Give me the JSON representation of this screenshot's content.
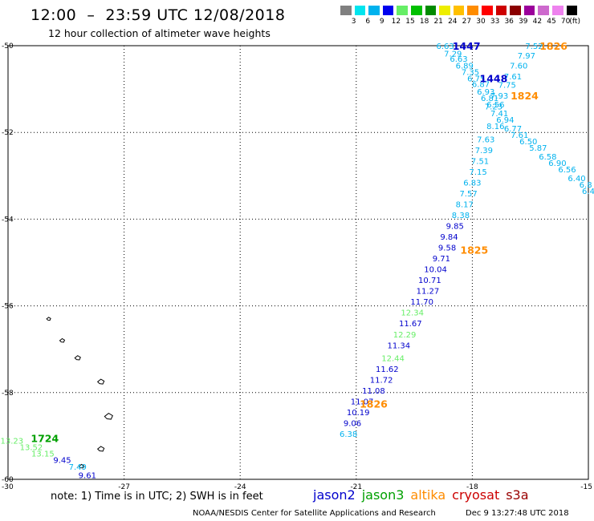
{
  "header": {
    "title": "12:00  –  23:59 UTC 12/08/2018",
    "subtitle": "12 hour collection of altimeter wave heights"
  },
  "colorbar": {
    "unit_label": "(ft)",
    "entries": [
      {
        "label": "3",
        "color": "#808080"
      },
      {
        "label": "6",
        "color": "#00e5ee"
      },
      {
        "label": "9",
        "color": "#00b2ee"
      },
      {
        "label": "12",
        "color": "#0000ee"
      },
      {
        "label": "15",
        "color": "#66ee66"
      },
      {
        "label": "18",
        "color": "#00c000"
      },
      {
        "label": "21",
        "color": "#008b00"
      },
      {
        "label": "24",
        "color": "#eeee00"
      },
      {
        "label": "27",
        "color": "#ffc000"
      },
      {
        "label": "30",
        "color": "#ff8c00"
      },
      {
        "label": "33",
        "color": "#ff0000"
      },
      {
        "label": "36",
        "color": "#cd0000"
      },
      {
        "label": "39",
        "color": "#8b0000"
      },
      {
        "label": "42",
        "color": "#9b009b"
      },
      {
        "label": "45",
        "color": "#cd69cd"
      },
      {
        "label": "70",
        "color": "#ee82ee"
      },
      {
        "label": "",
        "color": "#000000"
      }
    ]
  },
  "axes": {
    "lat_labels": [
      "-50",
      "-52",
      "-54",
      "-56",
      "-58",
      "-60"
    ],
    "lon_labels": [
      "-30",
      "-27",
      "-24",
      "-21",
      "-18",
      "-15"
    ]
  },
  "footer": {
    "note": "note:  1) Time is in UTC;  2) SWH is in feet",
    "satellites": [
      {
        "name": "jason2",
        "color": "#0000cc"
      },
      {
        "name": "jason3",
        "color": "#00a000"
      },
      {
        "name": "altika",
        "color": "#ff8c00"
      },
      {
        "name": "cryosat",
        "color": "#cc0000"
      },
      {
        "name": "s3a",
        "color": "#990000"
      }
    ],
    "credit": "NOAA/NESDIS Center for Satellite Applications and Research",
    "timestamp": "Dec  9 13:27:48 UTC 2018"
  },
  "map_data": {
    "lat_range": [
      -60,
      -50
    ],
    "lon_range": [
      -30,
      -15
    ],
    "colors": {
      "s6": "#00b2ee",
      "s9": "#0000cc",
      "s12": "#66ee66",
      "s15": "#00a000",
      "alt": "#ff8c00",
      "time_j2": "#0000cc",
      "time_j3": "#00a000"
    },
    "observations": [
      {
        "t": "6.63",
        "c": "s6",
        "lon": -18.7,
        "lat": -50.0
      },
      {
        "t": "7.29",
        "c": "s6",
        "lon": -18.5,
        "lat": -50.18
      },
      {
        "t": "6.63",
        "c": "s6",
        "lon": -18.35,
        "lat": -50.3
      },
      {
        "t": "6.89",
        "c": "s6",
        "lon": -18.2,
        "lat": -50.45
      },
      {
        "t": "7.35",
        "c": "s6",
        "lon": -18.05,
        "lat": -50.6
      },
      {
        "t": "6.75",
        "c": "s6",
        "lon": -17.9,
        "lat": -50.75
      },
      {
        "t": "6.87",
        "c": "s6",
        "lon": -17.78,
        "lat": -50.88
      },
      {
        "t": "6.93",
        "c": "s6",
        "lon": -17.65,
        "lat": -51.05
      },
      {
        "t": "6.81",
        "c": "s6",
        "lon": -17.55,
        "lat": -51.2
      },
      {
        "t": "6.56",
        "c": "s6",
        "lon": -17.4,
        "lat": -51.35
      },
      {
        "t": "7.41",
        "c": "s6",
        "lon": -17.3,
        "lat": -51.55
      },
      {
        "t": "6.94",
        "c": "s6",
        "lon": -17.15,
        "lat": -51.7
      },
      {
        "t": "8.16",
        "c": "s6",
        "lon": -17.4,
        "lat": -51.85
      },
      {
        "t": "6.77",
        "c": "s6",
        "lon": -16.95,
        "lat": -51.9
      },
      {
        "t": "7.61",
        "c": "s6",
        "lon": -16.78,
        "lat": -52.05
      },
      {
        "t": "6.50",
        "c": "s6",
        "lon": -16.55,
        "lat": -52.2
      },
      {
        "t": "5.87",
        "c": "s6",
        "lon": -16.3,
        "lat": -52.35
      },
      {
        "t": "6.58",
        "c": "s6",
        "lon": -16.05,
        "lat": -52.55
      },
      {
        "t": "6.90",
        "c": "s6",
        "lon": -15.8,
        "lat": -52.7
      },
      {
        "t": "6.56",
        "c": "s6",
        "lon": -15.55,
        "lat": -52.85
      },
      {
        "t": "6.40",
        "c": "s6",
        "lon": -15.3,
        "lat": -53.05
      },
      {
        "t": "6.8",
        "c": "s6",
        "lon": -15.07,
        "lat": -53.2
      },
      {
        "t": "6.4",
        "c": "s6",
        "lon": -15.0,
        "lat": -53.35
      },
      {
        "t": "7.52",
        "c": "s6",
        "lon": -16.4,
        "lat": -50.0
      },
      {
        "t": "7.97",
        "c": "s6",
        "lon": -16.6,
        "lat": -50.22
      },
      {
        "t": "7.60",
        "c": "s6",
        "lon": -16.8,
        "lat": -50.45
      },
      {
        "t": "7.61",
        "c": "s6",
        "lon": -16.95,
        "lat": -50.7
      },
      {
        "t": "7.75",
        "c": "s6",
        "lon": -17.1,
        "lat": -50.9
      },
      {
        "t": "7.93",
        "c": "s6",
        "lon": -17.3,
        "lat": -51.15
      },
      {
        "t": "7.23",
        "c": "s6",
        "lon": -17.45,
        "lat": -51.4
      },
      {
        "t": "7.63",
        "c": "s6",
        "lon": -17.65,
        "lat": -52.15
      },
      {
        "t": "7.39",
        "c": "s6",
        "lon": -17.7,
        "lat": -52.4
      },
      {
        "t": "7.51",
        "c": "s6",
        "lon": -17.8,
        "lat": -52.65
      },
      {
        "t": "7.15",
        "c": "s6",
        "lon": -17.85,
        "lat": -52.9
      },
      {
        "t": "6.83",
        "c": "s6",
        "lon": -18.0,
        "lat": -53.15
      },
      {
        "t": "7.57",
        "c": "s6",
        "lon": -18.1,
        "lat": -53.4
      },
      {
        "t": "8.17",
        "c": "s6",
        "lon": -18.2,
        "lat": -53.65
      },
      {
        "t": "8.38",
        "c": "s6",
        "lon": -18.3,
        "lat": -53.9
      },
      {
        "t": "9.85",
        "c": "s9",
        "lon": -18.45,
        "lat": -54.15
      },
      {
        "t": "9.84",
        "c": "s9",
        "lon": -18.6,
        "lat": -54.4
      },
      {
        "t": "9.58",
        "c": "s9",
        "lon": -18.65,
        "lat": -54.65
      },
      {
        "t": "9.71",
        "c": "s9",
        "lon": -18.8,
        "lat": -54.9
      },
      {
        "t": "10.04",
        "c": "s9",
        "lon": -18.95,
        "lat": -55.15
      },
      {
        "t": "10.71",
        "c": "s9",
        "lon": -19.1,
        "lat": -55.4
      },
      {
        "t": "11.27",
        "c": "s9",
        "lon": -19.15,
        "lat": -55.65
      },
      {
        "t": "11.70",
        "c": "s9",
        "lon": -19.3,
        "lat": -55.9
      },
      {
        "t": "12.34",
        "c": "s12",
        "lon": -19.55,
        "lat": -56.15
      },
      {
        "t": "11.67",
        "c": "s9",
        "lon": -19.6,
        "lat": -56.4
      },
      {
        "t": "12.29",
        "c": "s12",
        "lon": -19.75,
        "lat": -56.65
      },
      {
        "t": "11.34",
        "c": "s9",
        "lon": -19.9,
        "lat": -56.9
      },
      {
        "t": "12.44",
        "c": "s12",
        "lon": -20.05,
        "lat": -57.2
      },
      {
        "t": "11.62",
        "c": "s9",
        "lon": -20.2,
        "lat": -57.45
      },
      {
        "t": "11.72",
        "c": "s9",
        "lon": -20.35,
        "lat": -57.7
      },
      {
        "t": "11.08",
        "c": "s9",
        "lon": -20.55,
        "lat": -57.95
      },
      {
        "t": "11.07",
        "c": "s9",
        "lon": -20.85,
        "lat": -58.2
      },
      {
        "t": "10.19",
        "c": "s9",
        "lon": -20.95,
        "lat": -58.45
      },
      {
        "t": "9.06",
        "c": "s9",
        "lon": -21.1,
        "lat": -58.7
      },
      {
        "t": "6.38",
        "c": "s6",
        "lon": -21.2,
        "lat": -58.95
      },
      {
        "t": "13.23",
        "c": "s12",
        "lon": -29.9,
        "lat": -59.1
      },
      {
        "t": "13.52",
        "c": "s12",
        "lon": -29.4,
        "lat": -59.25
      },
      {
        "t": "13.15",
        "c": "s12",
        "lon": -29.1,
        "lat": -59.4
      },
      {
        "t": "9.45",
        "c": "s9",
        "lon": -28.6,
        "lat": -59.55
      },
      {
        "t": "7.49",
        "c": "s6",
        "lon": -28.2,
        "lat": -59.7
      },
      {
        "t": "9.61",
        "c": "s9",
        "lon": -27.95,
        "lat": -59.9
      }
    ],
    "time_labels": [
      {
        "t": "1447",
        "c": "time_j2",
        "lon": -18.15,
        "lat": -50.0
      },
      {
        "t": "1448",
        "c": "time_j2",
        "lon": -17.45,
        "lat": -50.75
      },
      {
        "t": "1826",
        "c": "alt",
        "lon": -15.9,
        "lat": -50.0
      },
      {
        "t": "1824",
        "c": "alt",
        "lon": -16.65,
        "lat": -51.15
      },
      {
        "t": "1825",
        "c": "alt",
        "lon": -17.95,
        "lat": -54.7
      },
      {
        "t": "1826",
        "c": "alt",
        "lon": -20.55,
        "lat": -58.25
      },
      {
        "t": "1724",
        "c": "time_j3",
        "lon": -29.05,
        "lat": -59.05
      }
    ],
    "islands": [
      {
        "lon": -28.95,
        "lat": -56.3
      },
      {
        "lon": -28.6,
        "lat": -56.8
      },
      {
        "lon": -28.2,
        "lat": -57.2
      },
      {
        "lon": -27.6,
        "lat": -57.75
      },
      {
        "lon": -27.4,
        "lat": -58.55
      },
      {
        "lon": -27.6,
        "lat": -59.3
      },
      {
        "lon": -28.1,
        "lat": -59.7
      }
    ]
  }
}
